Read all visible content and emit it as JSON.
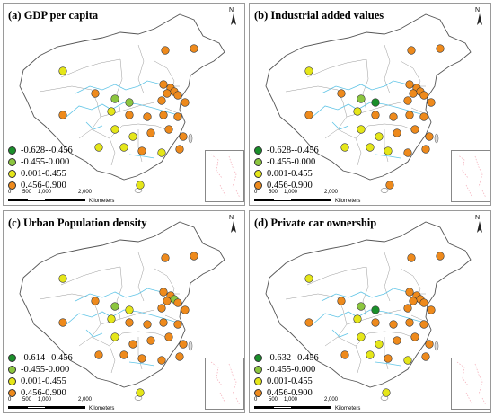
{
  "legend_colors": [
    "#1a8f2a",
    "#8cc63f",
    "#e5e619",
    "#ee8a1c"
  ],
  "scale": {
    "ticks": [
      "0",
      "500",
      "1,000",
      "2,000"
    ],
    "unit": "Kilometers"
  },
  "north_label": "N",
  "panels": [
    {
      "title": "(a) GDP per capita",
      "legend": [
        "-0.628--0.456",
        "-0.455-0.000",
        "0.001-0.455",
        "0.456-0.900"
      ]
    },
    {
      "title": "(b) Industrial added values",
      "legend": [
        "-0.628--0.456",
        "-0.455-0.000",
        "0.001-0.455",
        "0.456-0.900"
      ]
    },
    {
      "title": "(c) Urban Population density",
      "legend": [
        "-0.614--0.456",
        "-0.455-0.000",
        "0.001-0.455",
        "0.456-0.900"
      ]
    },
    {
      "title": "(d) Private car ownership",
      "legend": [
        "-0.632--0.456",
        "-0.455-0.000",
        "0.001-0.455",
        "0.456-0.900"
      ]
    }
  ]
}
